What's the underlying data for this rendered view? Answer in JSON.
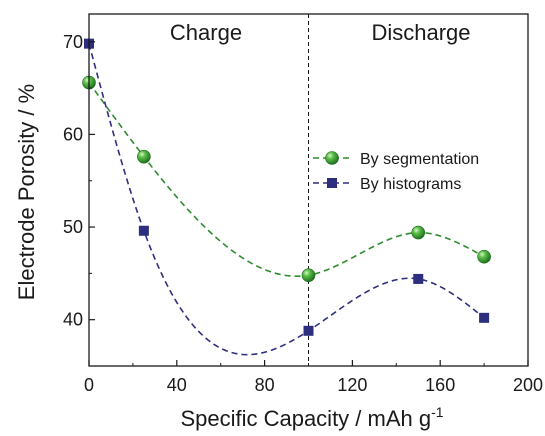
{
  "chart_data": {
    "type": "line",
    "xlabel": "Specific Capacity / mAh g",
    "xlabel_superscript": "-1",
    "ylabel": "Electrode Porosity / %",
    "xlim": [
      0,
      200
    ],
    "ylim": [
      35,
      73
    ],
    "xticks": [
      0,
      40,
      80,
      120,
      160,
      200
    ],
    "yticks": [
      40,
      50,
      60,
      70
    ],
    "grid": false,
    "legend_position": "right",
    "divider_x": 100,
    "regions": [
      {
        "label": "Charge",
        "x": 50
      },
      {
        "label": "Discharge",
        "x": 153
      }
    ],
    "series": [
      {
        "name": "By segmentation",
        "color": "#2e8b2e",
        "marker": "sphere",
        "x": [
          0,
          25,
          100,
          150,
          180
        ],
        "y": [
          65.6,
          57.6,
          44.8,
          49.4,
          46.8
        ]
      },
      {
        "name": "By histograms",
        "color": "#2e2e7e",
        "marker": "square",
        "x": [
          0,
          25,
          100,
          150,
          180
        ],
        "y": [
          69.8,
          49.6,
          38.8,
          44.4,
          40.2
        ]
      }
    ]
  }
}
